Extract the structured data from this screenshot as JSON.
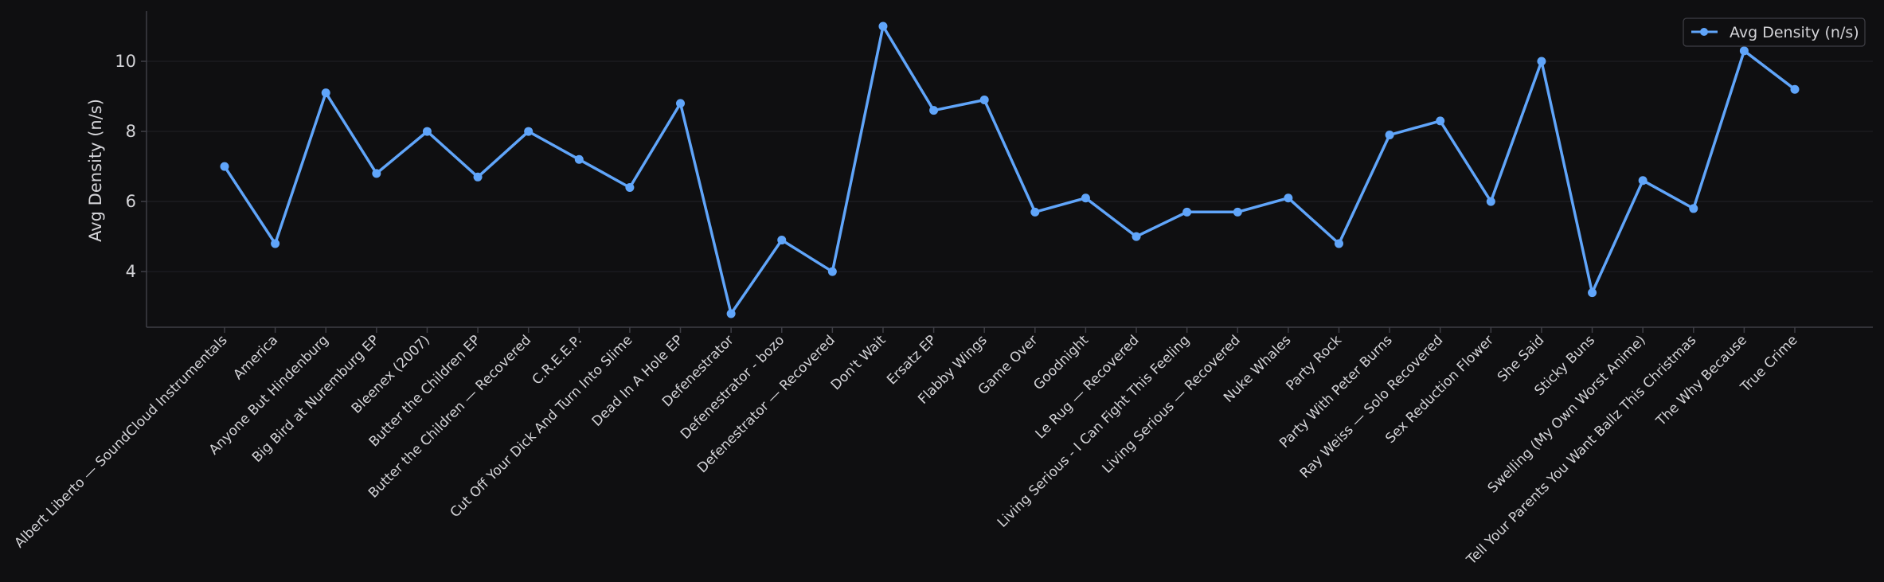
{
  "chart_data": {
    "type": "line",
    "ylabel": "Avg Density (n/s)",
    "xlabel": "",
    "ylim": [
      2.6,
      11.5
    ],
    "yticks": [
      4,
      6,
      8,
      10
    ],
    "grid": true,
    "legend_position": "top-right",
    "categories": [
      "Albert Liberto — SoundCloud Instrumentals",
      "America",
      "Anyone But Hindenburg",
      "Big Bird at Nuremburg EP",
      "Bleenex (2007)",
      "Butter the Children EP",
      "Butter the Children — Recovered",
      "C.R.E.E.P.",
      "Cut Off Your Dick And Turn Into Slime",
      "Dead In A Hole EP",
      "Defenestrator",
      "Defenestrator - bozo",
      "Defenestrator — Recovered",
      "Don't Wait",
      "Ersatz EP",
      "Flabby Wings",
      "Game Over",
      "Goodnight",
      "Le Rug — Recovered",
      "Living Serious - I Can Fight This Feeling",
      "Living Serious — Recovered",
      "Nuke Whales",
      "Party Rock",
      "Party With Peter Burns",
      "Ray Weiss — Solo Recovered",
      "Sex Reduction Flower",
      "She Said",
      "Sticky Buns",
      "Swelling (My Own Worst Anime)",
      "Tell Your Parents You Want Ballz This Christmas",
      "The Why Because",
      "True Crime"
    ],
    "series": [
      {
        "name": "Avg Density (n/s)",
        "color": "#60a5fa",
        "values": [
          7.0,
          4.8,
          9.1,
          6.8,
          8.0,
          6.7,
          8.0,
          7.2,
          6.4,
          8.8,
          2.8,
          4.9,
          4.0,
          11.0,
          8.6,
          8.9,
          5.7,
          6.1,
          5.0,
          5.7,
          5.7,
          6.1,
          4.8,
          7.9,
          8.3,
          6.0,
          10.0,
          3.4,
          6.6,
          5.8,
          10.3,
          9.2
        ]
      }
    ]
  }
}
